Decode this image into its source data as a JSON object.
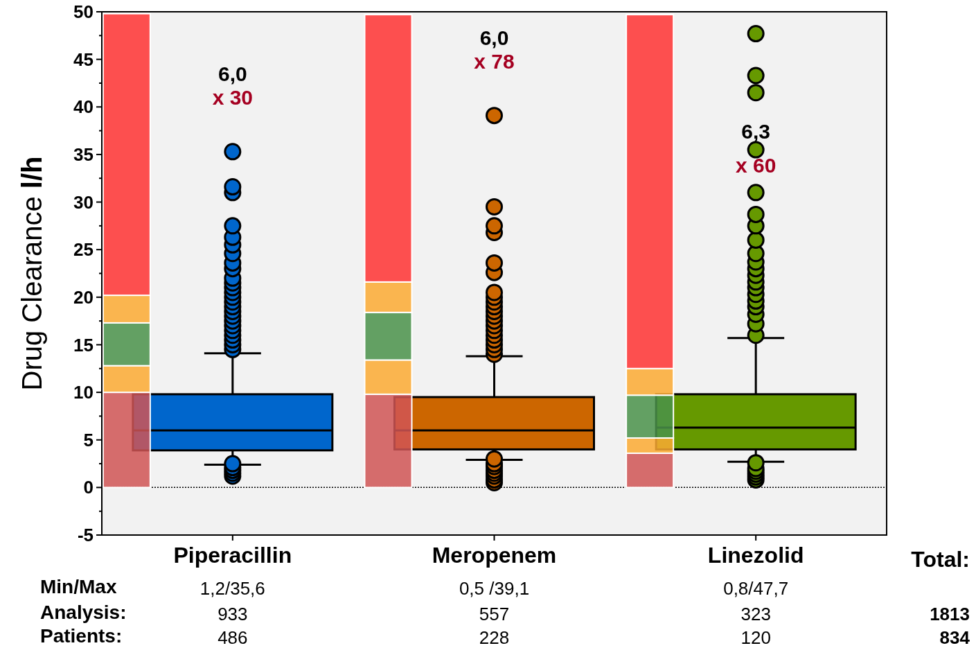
{
  "chart_data": {
    "type": "box",
    "ylabel": "Drug Clearance l/h",
    "categories": [
      "Piperacillin",
      "Meropenem",
      "Linezolid"
    ],
    "ylim": [
      -5,
      50
    ],
    "yticks": [
      -5,
      {
        "value": -2.5,
        "label": null
      },
      0,
      {
        "value": 2.5,
        "label": null
      },
      5,
      {
        "value": 7.5,
        "label": null
      },
      10,
      {
        "value": 12.5,
        "label": null
      },
      15,
      {
        "value": 17.5,
        "label": null
      },
      20,
      {
        "value": 22.5,
        "label": null
      },
      25,
      {
        "value": 27.5,
        "label": null
      },
      30,
      {
        "value": 32.5,
        "label": null
      },
      35,
      {
        "value": 37.5,
        "label": null
      },
      40,
      {
        "value": 42.5,
        "label": null
      },
      45,
      {
        "value": 47.5,
        "label": null
      },
      50
    ],
    "stacked": true,
    "grid": false,
    "series": [
      {
        "type": "bar",
        "color": "#d05555",
        "values": [
          10,
          9.8,
          3.6
        ]
      },
      {
        "type": "bar",
        "color": "#fbaa33",
        "values": [
          2.8,
          3.6,
          1.6
        ]
      },
      {
        "type": "bar",
        "color": "#4a924a",
        "values": [
          4.5,
          5.0,
          4.5
        ]
      },
      {
        "type": "bar",
        "color": "#fbaa33",
        "values": [
          2.9,
          3.2,
          2.8
        ]
      },
      {
        "type": "bar",
        "color": "#ff3333",
        "values": [
          29.6,
          28.1,
          37.2
        ]
      },
      {
        "colors": [
          "#0066cc",
          "#cc6600",
          "#669900"
        ],
        "boxes": [
          {
            "low": 2.4,
            "q1": 3.9,
            "median": 6.0,
            "q3": 9.8,
            "high": 14.1,
            "outliers": [
              1.2,
              1.5,
              1.8,
              2.1,
              2.5,
              14.5,
              15,
              15.5,
              16,
              16.5,
              17,
              17.5,
              18,
              18.5,
              19,
              19.5,
              20,
              20.5,
              21,
              21.5,
              22,
              23,
              23.6,
              24.6,
              25.5,
              26.3,
              27.5,
              31,
              31.6,
              35.3
            ]
          },
          {
            "low": 2.9,
            "q1": 4.0,
            "median": 6.0,
            "q3": 9.5,
            "high": 13.8,
            "outliers": [
              0.5,
              0.8,
              1.2,
              1.5,
              1.8,
              2.2,
              2.5,
              3.0,
              14,
              14.5,
              15,
              15.5,
              16,
              16.5,
              17,
              17.5,
              18,
              18.5,
              19,
              19.5,
              20,
              20.5,
              22.6,
              23.6,
              26.8,
              27.5,
              29.5,
              39.1
            ]
          },
          {
            "low": 2.7,
            "q1": 4.0,
            "median": 6.3,
            "q3": 9.8,
            "high": 15.7,
            "outliers": [
              0.8,
              1.1,
              1.4,
              1.7,
              2.0,
              2.6,
              16,
              17.2,
              18.2,
              19,
              19.6,
              20.3,
              21,
              21.6,
              22.3,
              23,
              23.7,
              24.6,
              26,
              27.5,
              28.7,
              31,
              35.5,
              41.5,
              43.3,
              47.7
            ]
          }
        ]
      }
    ],
    "ref_lines": [
      {
        "axis": "y",
        "value": 0,
        "color": "#000000",
        "line_style": "dotted"
      }
    ],
    "annotations": [
      "6,0",
      "x 30",
      "6,0",
      "x 78",
      "6,3",
      "x 60",
      "Total:",
      "Min/Max",
      "1,2/35,6",
      "0,5 /39,1",
      "0,8/47,7",
      "Analysis:",
      "933",
      "557",
      "323",
      "1813",
      "Patients:",
      "486",
      "228",
      "120",
      "834"
    ]
  }
}
